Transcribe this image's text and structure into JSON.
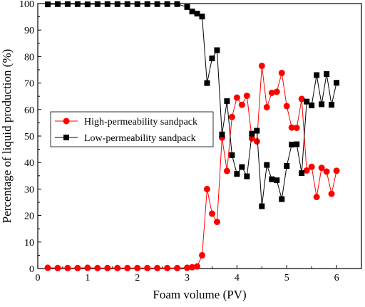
{
  "chart_data": {
    "type": "line",
    "xlabel": "Foam volume (PV)",
    "ylabel": "Percentage of liquid production (%)",
    "xlim": [
      0,
      6.5
    ],
    "ylim": [
      0,
      100
    ],
    "xticks": [
      0,
      1,
      2,
      3,
      4,
      5,
      6
    ],
    "yticks": [
      0,
      10,
      20,
      30,
      40,
      50,
      60,
      70,
      80,
      90,
      100
    ],
    "grid": false,
    "legend_position": "middle-left",
    "series": [
      {
        "name": "High-permeability sandpack",
        "color": "#ff0000",
        "marker": "circle",
        "x": [
          0.2,
          0.4,
          0.6,
          0.8,
          1.0,
          1.2,
          1.4,
          1.6,
          1.8,
          2.0,
          2.2,
          2.4,
          2.6,
          2.8,
          3.0,
          3.1,
          3.2,
          3.3,
          3.4,
          3.5,
          3.6,
          3.7,
          3.8,
          3.9,
          4.0,
          4.1,
          4.2,
          4.3,
          4.4,
          4.5,
          4.6,
          4.7,
          4.8,
          4.9,
          5.0,
          5.1,
          5.2,
          5.3,
          5.4,
          5.5,
          5.6,
          5.7,
          5.8,
          5.9,
          6.0
        ],
        "y": [
          0.3,
          0.2,
          0.2,
          0.2,
          0.3,
          0.2,
          0.2,
          0.2,
          0.2,
          0.2,
          0.2,
          0.2,
          0.2,
          0.2,
          0.3,
          0.5,
          0.8,
          5.0,
          30.0,
          20.7,
          17.6,
          49.4,
          36.8,
          57.2,
          64.5,
          61.8,
          65.2,
          49.1,
          48.0,
          76.5,
          60.9,
          66.3,
          66.7,
          73.8,
          61.3,
          53.2,
          53.1,
          64.0,
          37.0,
          38.4,
          27.0,
          38.0,
          36.6,
          28.2,
          36.9
        ]
      },
      {
        "name": "Low-permeability sandpack",
        "color": "#000000",
        "marker": "square",
        "x": [
          0.2,
          0.4,
          0.6,
          0.8,
          1.0,
          1.2,
          1.4,
          1.6,
          1.8,
          2.0,
          2.2,
          2.4,
          2.6,
          2.8,
          3.0,
          3.1,
          3.2,
          3.3,
          3.4,
          3.5,
          3.6,
          3.7,
          3.8,
          3.9,
          4.0,
          4.1,
          4.2,
          4.3,
          4.4,
          4.5,
          4.6,
          4.7,
          4.8,
          4.9,
          5.0,
          5.1,
          5.2,
          5.3,
          5.4,
          5.5,
          5.6,
          5.7,
          5.8,
          5.9,
          6.0
        ],
        "y": [
          99.7,
          99.8,
          99.8,
          99.8,
          99.7,
          99.8,
          99.8,
          99.8,
          99.8,
          99.8,
          99.8,
          99.8,
          99.8,
          99.8,
          98.7,
          97.0,
          96.2,
          95.1,
          70.0,
          79.3,
          82.4,
          50.6,
          63.2,
          42.8,
          35.7,
          38.3,
          34.8,
          50.9,
          52.0,
          23.5,
          39.1,
          33.7,
          33.3,
          26.2,
          38.7,
          46.8,
          46.9,
          36.0,
          63.0,
          61.6,
          73.0,
          62.0,
          73.4,
          61.8,
          70.1
        ]
      }
    ]
  }
}
